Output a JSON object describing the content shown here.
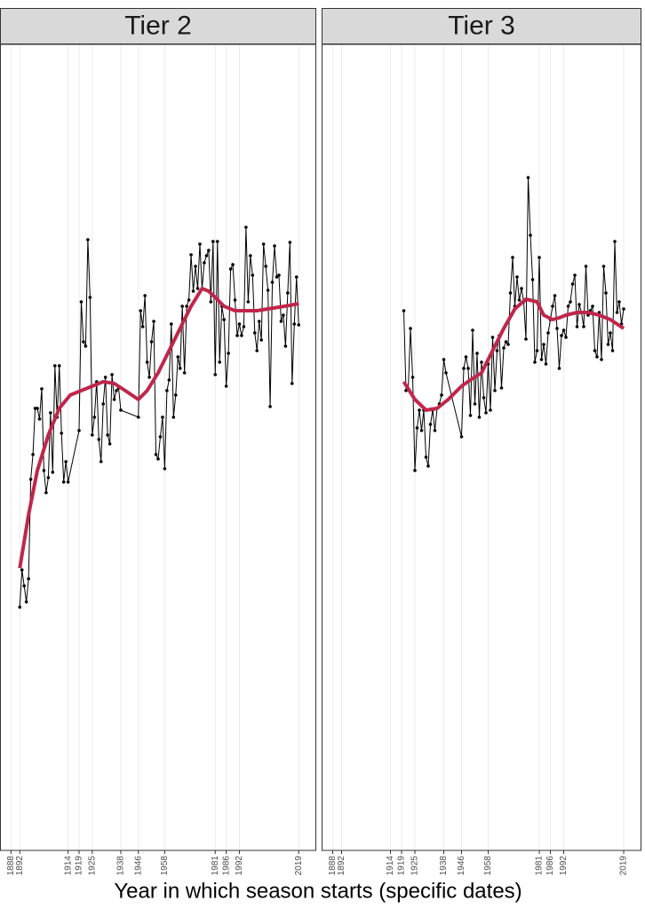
{
  "x_label": "Year in which season starts (specific dates)",
  "chart_data": [
    {
      "type": "line",
      "title": "Tier 2",
      "x": [
        1892,
        1893,
        1894,
        1895,
        1896,
        1897,
        1898,
        1899,
        1900,
        1901,
        1902,
        1903,
        1904,
        1905,
        1906,
        1907,
        1908,
        1909,
        1910,
        1911,
        1912,
        1913,
        1914,
        1919,
        1920,
        1921,
        1922,
        1923,
        1924,
        1925,
        1926,
        1927,
        1928,
        1929,
        1930,
        1931,
        1932,
        1933,
        1934,
        1935,
        1936,
        1937,
        1938,
        1946,
        1947,
        1948,
        1949,
        1950,
        1951,
        1952,
        1953,
        1954,
        1955,
        1956,
        1957,
        1958,
        1959,
        1960,
        1961,
        1962,
        1963,
        1964,
        1965,
        1966,
        1967,
        1968,
        1969,
        1970,
        1971,
        1972,
        1973,
        1974,
        1975,
        1976,
        1977,
        1978,
        1979,
        1980,
        1981,
        1982,
        1983,
        1984,
        1985,
        1986,
        1987,
        1988,
        1989,
        1990,
        1991,
        1992,
        1993,
        1994,
        1995,
        1996,
        1997,
        1998,
        1999,
        2000,
        2001,
        2002,
        2003,
        2004,
        2005,
        2006,
        2007,
        2008,
        2009,
        2010,
        2011,
        2012,
        2013,
        2014,
        2015,
        2016,
        2017,
        2018,
        2019
      ],
      "series": [
        {
          "color": "#000000",
          "values": [
            274,
            316,
            298,
            280,
            306,
            418,
            446,
            498,
            498,
            486,
            520,
            428,
            403,
            420,
            493,
            426,
            546,
            488,
            546,
            470,
            415,
            438,
            415,
            473,
            618,
            573,
            568,
            688,
            623,
            468,
            488,
            528,
            463,
            438,
            503,
            533,
            468,
            458,
            536,
            508,
            518,
            521,
            496,
            488,
            608,
            590,
            625,
            550,
            533,
            573,
            596,
            446,
            441,
            466,
            488,
            430,
            518,
            530,
            593,
            488,
            513,
            556,
            543,
            613,
            538,
            613,
            620,
            671,
            630,
            658,
            633,
            683,
            633,
            662,
            670,
            676,
            618,
            686,
            536,
            686,
            550,
            613,
            598,
            523,
            560,
            655,
            660,
            620,
            580,
            593,
            580,
            590,
            702,
            618,
            670,
            648,
            583,
            563,
            596,
            575,
            683,
            658,
            631,
            500,
            640,
            681,
            646,
            648,
            596,
            603,
            568,
            628,
            685,
            526,
            593,
            646,
            592
          ]
        },
        {
          "color": "#c0264a",
          "x": [
            1892,
            1896,
            1900,
            1905,
            1910,
            1915,
            1920,
            1925,
            1930,
            1935,
            1940,
            1946,
            1950,
            1955,
            1960,
            1965,
            1970,
            1975,
            1978,
            1981,
            1985,
            1990,
            1995,
            2000,
            2005,
            2010,
            2015,
            2019
          ],
          "values": [
            318,
            378,
            428,
            468,
            498,
            513,
            518,
            523,
            528,
            526,
            518,
            508,
            518,
            538,
            563,
            588,
            613,
            633,
            630,
            623,
            613,
            608,
            608,
            608,
            610,
            612,
            614,
            616
          ]
        }
      ],
      "xlim": [
        1883,
        2027
      ],
      "xticks": [
        1888,
        1892,
        1914,
        1919,
        1925,
        1938,
        1946,
        1958,
        1981,
        1986,
        1992,
        2019
      ],
      "ylim": [
        0,
        908
      ],
      "grid": true
    },
    {
      "type": "line",
      "title": "Tier 3",
      "x": [
        1920,
        1921,
        1922,
        1923,
        1924,
        1925,
        1926,
        1927,
        1928,
        1929,
        1930,
        1931,
        1932,
        1933,
        1934,
        1935,
        1936,
        1937,
        1938,
        1939,
        1946,
        1947,
        1948,
        1949,
        1950,
        1951,
        1952,
        1953,
        1954,
        1955,
        1956,
        1957,
        1958,
        1959,
        1960,
        1961,
        1962,
        1963,
        1964,
        1965,
        1966,
        1967,
        1968,
        1969,
        1970,
        1971,
        1972,
        1973,
        1974,
        1975,
        1976,
        1977,
        1978,
        1979,
        1980,
        1981,
        1982,
        1983,
        1984,
        1985,
        1986,
        1987,
        1988,
        1989,
        1990,
        1991,
        1992,
        1993,
        1994,
        1995,
        1996,
        1997,
        1998,
        1999,
        2000,
        2001,
        2002,
        2003,
        2004,
        2005,
        2006,
        2007,
        2008,
        2009,
        2010,
        2011,
        2012,
        2013,
        2014,
        2015,
        2016,
        2017,
        2018,
        2019
      ],
      "series": [
        {
          "color": "#000000",
          "values": [
            608,
            518,
            520,
            588,
            533,
            428,
            476,
            496,
            473,
            496,
            443,
            433,
            480,
            496,
            473,
            498,
            503,
            513,
            553,
            538,
            466,
            543,
            556,
            543,
            490,
            586,
            503,
            560,
            488,
            550,
            510,
            493,
            548,
            496,
            578,
            518,
            563,
            580,
            521,
            566,
            573,
            570,
            628,
            668,
            613,
            646,
            620,
            633,
            618,
            576,
            758,
            693,
            643,
            550,
            563,
            668,
            553,
            570,
            548,
            583,
            598,
            613,
            625,
            588,
            543,
            580,
            586,
            578,
            613,
            618,
            638,
            648,
            590,
            615,
            606,
            590,
            658,
            603,
            608,
            613,
            563,
            556,
            606,
            553,
            658,
            628,
            570,
            583,
            563,
            686,
            606,
            618,
            593,
            610
          ]
        },
        {
          "color": "#c0264a",
          "x": [
            1920,
            1925,
            1930,
            1935,
            1940,
            1946,
            1950,
            1955,
            1960,
            1965,
            1970,
            1975,
            1980,
            1983,
            1987,
            1990,
            1993,
            1998,
            2003,
            2008,
            2013,
            2019
          ],
          "values": [
            528,
            508,
            496,
            498,
            508,
            523,
            530,
            538,
            563,
            588,
            610,
            621,
            618,
            603,
            598,
            600,
            603,
            606,
            606,
            603,
            598,
            588
          ]
        }
      ],
      "xlim": [
        1883,
        2027
      ],
      "xticks": [
        1888,
        1892,
        1914,
        1919,
        1925,
        1938,
        1946,
        1958,
        1981,
        1986,
        1992,
        2019
      ],
      "ylim": [
        0,
        908
      ],
      "grid": true
    }
  ]
}
